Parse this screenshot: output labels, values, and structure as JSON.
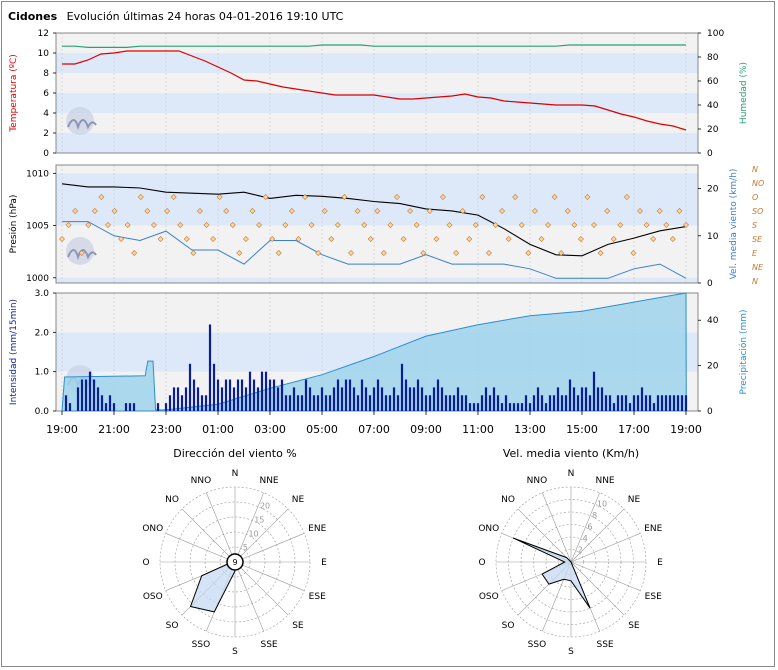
{
  "station": "Cidones",
  "subtitle": "Evolución últimas 24 horas 04-01-2016 19:10 UTC",
  "time_labels": [
    "19:00",
    "21:00",
    "23:00",
    "01:00",
    "03:00",
    "05:00",
    "07:00",
    "09:00",
    "11:00",
    "13:00",
    "15:00",
    "17:00",
    "19:00"
  ],
  "colors": {
    "temp": "#dd0000",
    "humidity": "#2aa07a",
    "pressure": "#000000",
    "wind": "#3a7fd0",
    "gust": "#c87a32",
    "intensity": "#0a1f96",
    "precip_fill": "#9fd3ec",
    "precip_line": "#2a8fd0",
    "band": "#dde8f8",
    "band_alt": "#f2f2f2",
    "grid": "#c8c8c8"
  },
  "chart_data": [
    {
      "type": "line",
      "title": "",
      "ylabel": "Temperatura (ºC)",
      "y2label": "Humedad (%)",
      "ylim": [
        0,
        12
      ],
      "y2lim": [
        0,
        100
      ],
      "yticks": [
        "0",
        "2",
        "4",
        "6",
        "8",
        "10",
        "12"
      ],
      "y2ticks": [
        "0",
        "20",
        "40",
        "60",
        "80",
        "100"
      ],
      "x_hours": [
        0,
        0.5,
        1,
        1.5,
        2,
        2.5,
        3,
        3.5,
        4,
        4.5,
        5,
        5.5,
        6,
        6.5,
        7,
        7.5,
        8,
        8.5,
        9,
        9.5,
        10,
        10.5,
        11,
        11.5,
        12,
        12.5,
        13,
        13.5,
        14,
        14.5,
        15,
        15.5,
        16,
        16.5,
        17,
        17.5,
        18,
        18.5,
        19,
        19.5,
        20,
        20.5,
        21,
        21.5,
        22,
        22.5,
        23,
        23.5,
        24
      ],
      "series": [
        {
          "name": "Temperatura",
          "axis": "left",
          "values": [
            8.9,
            8.9,
            9.3,
            9.9,
            10,
            10.2,
            10.2,
            10.2,
            10.2,
            10.2,
            9.7,
            9.2,
            8.6,
            8,
            7.3,
            7.2,
            6.9,
            6.6,
            6.4,
            6.2,
            6,
            5.8,
            5.8,
            5.8,
            5.8,
            5.6,
            5.4,
            5.4,
            5.5,
            5.6,
            5.7,
            5.9,
            5.6,
            5.5,
            5.2,
            5.1,
            5,
            4.9,
            4.8,
            4.8,
            4.8,
            4.7,
            4.3,
            3.9,
            3.6,
            3.2,
            2.9,
            2.7,
            2.3
          ]
        },
        {
          "name": "Humedad",
          "axis": "right",
          "values": [
            89,
            89,
            88,
            88,
            88,
            88,
            89,
            89,
            89,
            89,
            89,
            89,
            89,
            89,
            89,
            89,
            89,
            89,
            89,
            89,
            90,
            90,
            90,
            90,
            89,
            89,
            89,
            89,
            89,
            89,
            89,
            89,
            89,
            89,
            89,
            89,
            89,
            89,
            89,
            90,
            90,
            90,
            90,
            90,
            90,
            90,
            90,
            90,
            90
          ]
        }
      ]
    },
    {
      "type": "line",
      "title": "",
      "ylabel": "Presión (hPa)",
      "y2label": "Vel. media viento (km/h)",
      "ylim": [
        1000,
        1010
      ],
      "y2lim": [
        0,
        25
      ],
      "yticks": [
        "1000",
        "1005",
        "1010"
      ],
      "y2ticks": [
        "0",
        "10",
        "20"
      ],
      "direction_labels": [
        "N",
        "NO",
        "O",
        "SO",
        "S",
        "SE",
        "E",
        "NE",
        "N"
      ],
      "x_hours": [
        0,
        1,
        2,
        3,
        4,
        5,
        6,
        7,
        8,
        9,
        10,
        11,
        12,
        13,
        14,
        15,
        16,
        17,
        18,
        19,
        20,
        21,
        22,
        23,
        24
      ],
      "series": [
        {
          "name": "Presión",
          "axis": "left",
          "values": [
            1009,
            1008.7,
            1008.7,
            1008.6,
            1008.2,
            1008.1,
            1008,
            1008.2,
            1007.6,
            1007.9,
            1007.8,
            1007.6,
            1007.3,
            1007.1,
            1006.6,
            1006.4,
            1006,
            1004.7,
            1003.2,
            1002.2,
            1002.1,
            1003.2,
            1003.8,
            1004.5,
            1004.9
          ]
        },
        {
          "name": "Vel. media viento",
          "axis": "right",
          "values": [
            13,
            13,
            10,
            9,
            11,
            7,
            7,
            4,
            9,
            9,
            6,
            4,
            4,
            4,
            6,
            4,
            4,
            4,
            3,
            1,
            1,
            1,
            3,
            4,
            1
          ]
        }
      ],
      "direction_points": {
        "count": 96,
        "note": "wind direction markers (diamonds)",
        "values": [
          5,
          4,
          3,
          6,
          4,
          3,
          2,
          4,
          3,
          5,
          4,
          6,
          2,
          3,
          4,
          5,
          3,
          2,
          4,
          5,
          6,
          3,
          4,
          5,
          2,
          3,
          4,
          6,
          5,
          3,
          4,
          2,
          5,
          6,
          4,
          3,
          5,
          2,
          4,
          6,
          3,
          5,
          4,
          2,
          6,
          3,
          4,
          5,
          3,
          6,
          4,
          2,
          5,
          3,
          4,
          6,
          3,
          5,
          2,
          4,
          6,
          3,
          5,
          4,
          2,
          6,
          4,
          3,
          5,
          2,
          4,
          6,
          3,
          5,
          4,
          2,
          6,
          3,
          4,
          5,
          2,
          4,
          6,
          3,
          5,
          4,
          2,
          6,
          3,
          4,
          5,
          3,
          4,
          5,
          3,
          4
        ]
      }
    },
    {
      "type": "bar",
      "title": "",
      "ylabel": "Intensidad (mm/15min)",
      "y2label": "Precipitación (mm)",
      "ylim": [
        0,
        3
      ],
      "y2lim": [
        0,
        52
      ],
      "yticks": [
        "0.0",
        "1.0",
        "2.0",
        "3.0"
      ],
      "y2ticks": [
        "0",
        "20",
        "40"
      ],
      "intensity_values": [
        0,
        0.4,
        0.2,
        0,
        0.6,
        0.8,
        0.8,
        1.0,
        0.8,
        0.6,
        0.4,
        0.2,
        0.4,
        0.2,
        0,
        0,
        0.2,
        0.2,
        0.2,
        0,
        0,
        0,
        0,
        0,
        0.2,
        0,
        0.2,
        0.4,
        0.6,
        0.6,
        0.4,
        0.6,
        1.2,
        0.8,
        0.6,
        0.4,
        0.4,
        2.2,
        1.2,
        0.8,
        0.6,
        0.8,
        0.8,
        0.6,
        0.8,
        0.8,
        0.6,
        1.0,
        0.8,
        0.6,
        1.0,
        1.0,
        0.8,
        0.8,
        0.6,
        0.8,
        0.4,
        0.4,
        0.6,
        0.4,
        0.4,
        0.8,
        0.6,
        0.4,
        0.4,
        0.6,
        0.4,
        0.4,
        0.6,
        0.8,
        0.6,
        0.8,
        0.8,
        0.6,
        0.4,
        0.8,
        0.6,
        0.4,
        0.6,
        0.8,
        0.6,
        0.4,
        0.4,
        0.6,
        0.4,
        1.2,
        0.8,
        0.6,
        0.6,
        0.8,
        0.6,
        0.4,
        0.4,
        0.6,
        0.8,
        0.6,
        0.4,
        0.4,
        0.4,
        0.6,
        0.4,
        0.4,
        0.2,
        0.2,
        0.2,
        0.4,
        0.6,
        0.4,
        0.6,
        0.4,
        0.2,
        0.4,
        0.2,
        0.2,
        0.2,
        0.2,
        0.4,
        0.2,
        0.4,
        0.6,
        0.4,
        0.2,
        0.4,
        0.4,
        0.6,
        0.4,
        0.4,
        0.8,
        0.6,
        0.4,
        0.6,
        0.6,
        0.4,
        1.0,
        0.6,
        0.6,
        0.4,
        0.4,
        0.2,
        0.4,
        0.4,
        0.4,
        0.2,
        0.4,
        0.4,
        0.6,
        0.4,
        0.4,
        0.2,
        0.4,
        0.4,
        0.4,
        0.4,
        0.4,
        0.4,
        0.4,
        0.4
      ],
      "accum_x_hours": [
        0,
        0.1,
        3.2,
        3.3,
        3.5,
        3.6,
        4.0,
        6.0,
        8.0,
        10.0,
        12.0,
        14.0,
        16.0,
        18.0,
        20.0,
        22.0,
        24.0,
        24.01
      ],
      "accum_values": [
        0,
        15,
        15.5,
        22,
        22,
        0.5,
        0.5,
        3,
        10,
        16,
        24,
        33,
        38,
        42,
        44,
        48,
        52,
        0
      ]
    },
    {
      "type": "radar",
      "title": "Dirección del viento %",
      "directions": [
        "N",
        "NNE",
        "NE",
        "ENE",
        "E",
        "ESE",
        "SE",
        "SSE",
        "S",
        "SSO",
        "SO",
        "OSO",
        "O",
        "ONO",
        "NO",
        "NNO"
      ],
      "rlim": [
        0,
        25
      ],
      "ring_labels": [
        "5",
        "10",
        "15",
        "20"
      ],
      "calm_label": "9",
      "values": [
        0,
        0,
        0,
        0,
        0,
        0,
        0,
        1,
        3,
        18,
        21,
        12,
        1,
        0,
        0,
        0
      ]
    },
    {
      "type": "radar",
      "title": "Vel. media viento (Km/h)",
      "directions": [
        "N",
        "NNE",
        "NE",
        "ENE",
        "E",
        "ESE",
        "SE",
        "SSE",
        "S",
        "SSO",
        "SO",
        "OSO",
        "O",
        "ONO",
        "NO",
        "NNO"
      ],
      "rlim": [
        0,
        12
      ],
      "ring_labels": [
        "2",
        "4",
        "6",
        "8",
        "10"
      ],
      "values": [
        0,
        0,
        0,
        0,
        0,
        0,
        0,
        8,
        3,
        3,
        5,
        5,
        1,
        10,
        1,
        0
      ]
    }
  ]
}
